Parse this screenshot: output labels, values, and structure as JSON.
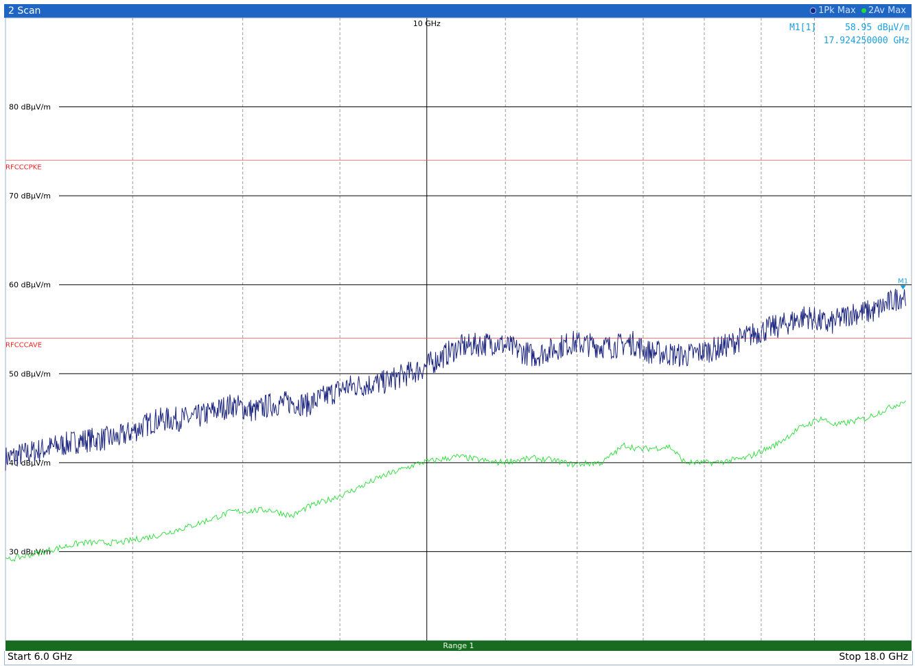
{
  "window": {
    "title": "2 Scan",
    "traces_legend": [
      {
        "label": "1Pk Max",
        "color": "#1a237e"
      },
      {
        "label": "2Av Max",
        "color": "#22dd33"
      }
    ]
  },
  "marker": {
    "name": "M1[1]",
    "level": "58.95 dBµV/m",
    "frequency": "17.924250000 GHz",
    "tag": "M1"
  },
  "footer": {
    "range_label": "Range 1",
    "start": "Start 6.0 GHz",
    "stop": "Stop 18.0 GHz"
  },
  "chart_data": {
    "type": "line",
    "xlim": [
      6.0,
      18.0
    ],
    "xunit": "GHz",
    "ylim": [
      20,
      90
    ],
    "yunit": "dBµV/m",
    "x_tick_label": {
      "value": 10,
      "label": "10 GHz"
    },
    "y_ticks": [
      {
        "value": 80,
        "label": "80 dBµV/m"
      },
      {
        "value": 70,
        "label": "70 dBµV/m"
      },
      {
        "value": 60,
        "label": "60 dBµV/m"
      },
      {
        "value": 50,
        "label": "50 dBµV/m"
      },
      {
        "value": 40,
        "label": "40 dBµV/m"
      },
      {
        "value": 30,
        "label": "30 dBµV/m"
      }
    ],
    "limit_lines": [
      {
        "name": "RFCCCPKE",
        "value": 74,
        "color": "#ff5555"
      },
      {
        "name": "RFCCCAVE",
        "value": 54,
        "color": "#ff5555"
      }
    ],
    "grid": true,
    "series": [
      {
        "name": "1Pk Max",
        "color": "#1a237e",
        "x": [
          6.0,
          6.5,
          7.0,
          7.5,
          8.0,
          8.5,
          9.0,
          9.3,
          9.5,
          9.8,
          10.0,
          10.5,
          11.0,
          11.5,
          12.0,
          12.5,
          13.0,
          13.5,
          14.0,
          14.3,
          14.5,
          15.0,
          15.5,
          16.0,
          16.3,
          16.6,
          16.9,
          17.2,
          17.5,
          17.924
        ],
        "values": [
          40.5,
          41.5,
          42.5,
          42.8,
          44.8,
          45.0,
          46.5,
          45.8,
          46.5,
          46.8,
          46.5,
          48.5,
          49.0,
          50.5,
          53.0,
          53.5,
          52.0,
          53.5,
          53.0,
          53.5,
          52.5,
          52.0,
          53.0,
          54.8,
          55.5,
          56.5,
          55.5,
          56.8,
          57.0,
          59.0
        ]
      },
      {
        "name": "2Av Max",
        "color": "#22dd33",
        "x": [
          6.0,
          6.5,
          7.0,
          7.5,
          8.0,
          8.5,
          9.0,
          9.5,
          9.8,
          10.0,
          10.5,
          11.0,
          11.5,
          12.0,
          12.5,
          13.0,
          13.3,
          13.5,
          13.9,
          14.2,
          14.4,
          14.8,
          15.0,
          15.4,
          15.8,
          16.2,
          16.5,
          16.8,
          17.0,
          17.4,
          17.924
        ],
        "values": [
          29.0,
          30.0,
          31.0,
          31.0,
          31.8,
          33.0,
          34.5,
          34.7,
          34.0,
          35.0,
          36.5,
          38.5,
          40.0,
          40.7,
          40.0,
          40.5,
          40.2,
          39.8,
          40.0,
          42.0,
          41.5,
          41.8,
          40.0,
          40.0,
          40.5,
          42.0,
          43.8,
          45.0,
          44.2,
          45.0,
          47.0
        ]
      }
    ]
  }
}
